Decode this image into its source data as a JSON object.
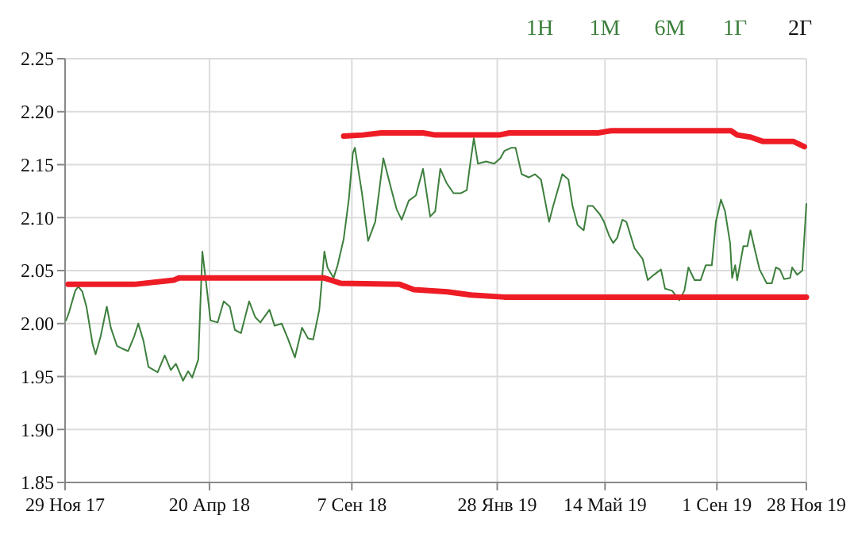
{
  "chart_data": {
    "type": "line",
    "annotations": [
      "1Н",
      "1М",
      "6М",
      "1Г",
      "2Г"
    ],
    "xlim": [
      "2017-11-29",
      "2019-11-28"
    ],
    "xticks": [
      {
        "value": "2017-11-29",
        "label": "29 Ноя 17"
      },
      {
        "value": "2018-04-20",
        "label": "20 Апр 18"
      },
      {
        "value": "2018-09-07",
        "label": "7 Сен 18"
      },
      {
        "value": "2019-01-28",
        "label": "28 Янв 19"
      },
      {
        "value": "2019-05-14",
        "label": "14 Май 19"
      },
      {
        "value": "2019-09-01",
        "label": "1 Сен 19"
      },
      {
        "value": "2019-11-28",
        "label": "28 Ноя 19"
      }
    ],
    "ylim": [
      1.85,
      2.25
    ],
    "yticks": [
      1.85,
      {
        "value": 1.9,
        "label": "1.90"
      },
      1.95,
      {
        "value": 2.0,
        "label": "2.00"
      },
      2.05,
      {
        "value": 2.1,
        "label": "2.10"
      },
      2.15,
      {
        "value": 2.2,
        "label": "2.20"
      },
      2.25
    ],
    "grid": true,
    "line_style": "solid",
    "series": [
      {
        "color": "#3d7f3d",
        "x": [
          "2017-11-30",
          "2017-12-03",
          "2017-12-09",
          "2017-12-12",
          "2017-12-16",
          "2017-12-20",
          "2017-12-26",
          "2017-12-29",
          "2018-01-03",
          "2018-01-09",
          "2018-01-13",
          "2018-01-19",
          "2018-01-25",
          "2018-01-30",
          "2018-02-05",
          "2018-02-09",
          "2018-02-14",
          "2018-02-19",
          "2018-02-28",
          "2018-03-07",
          "2018-03-13",
          "2018-03-18",
          "2018-03-25",
          "2018-03-30",
          "2018-04-03",
          "2018-04-09",
          "2018-04-13",
          "2018-04-17",
          "2018-04-21",
          "2018-04-28",
          "2018-05-04",
          "2018-05-10",
          "2018-05-15",
          "2018-05-21",
          "2018-05-29",
          "2018-06-04",
          "2018-06-09",
          "2018-06-18",
          "2018-06-23",
          "2018-06-30",
          "2018-07-06",
          "2018-07-13",
          "2018-07-20",
          "2018-07-26",
          "2018-07-31",
          "2018-08-06",
          "2018-08-11",
          "2018-08-14",
          "2018-08-20",
          "2018-08-24",
          "2018-08-30",
          "2018-09-04",
          "2018-09-08",
          "2018-09-10",
          "2018-09-17",
          "2018-09-23",
          "2018-09-30",
          "2018-10-08",
          "2018-10-16",
          "2018-10-21",
          "2018-10-26",
          "2018-11-02",
          "2018-11-09",
          "2018-11-16",
          "2018-11-23",
          "2018-11-28",
          "2018-12-03",
          "2018-12-09",
          "2018-12-16",
          "2018-12-23",
          "2018-12-29",
          "2019-01-01",
          "2019-01-05",
          "2019-01-09",
          "2019-01-17",
          "2019-01-25",
          "2019-01-31",
          "2019-02-04",
          "2019-02-11",
          "2019-02-15",
          "2019-02-21",
          "2019-02-28",
          "2019-03-06",
          "2019-03-12",
          "2019-03-20",
          "2019-03-24",
          "2019-04-02",
          "2019-04-08",
          "2019-04-12",
          "2019-04-17",
          "2019-04-23",
          "2019-04-27",
          "2019-05-02",
          "2019-05-09",
          "2019-05-13",
          "2019-05-18",
          "2019-05-22",
          "2019-05-26",
          "2019-05-31",
          "2019-06-04",
          "2019-06-12",
          "2019-06-20",
          "2019-06-25",
          "2019-07-01",
          "2019-07-08",
          "2019-07-12",
          "2019-07-19",
          "2019-07-26",
          "2019-07-31",
          "2019-08-04",
          "2019-08-10",
          "2019-08-16",
          "2019-08-21",
          "2019-08-27",
          "2019-08-31",
          "2019-09-05",
          "2019-09-09",
          "2019-09-14",
          "2019-09-16",
          "2019-09-19",
          "2019-09-21",
          "2019-09-27",
          "2019-10-01",
          "2019-10-04",
          "2019-10-08",
          "2019-10-13",
          "2019-10-20",
          "2019-10-25",
          "2019-10-29",
          "2019-11-02",
          "2019-11-06",
          "2019-11-12",
          "2019-11-14",
          "2019-11-19",
          "2019-11-24",
          "2019-11-28"
        ],
        "values": [
          2.003,
          2.011,
          2.031,
          2.035,
          2.03,
          2.016,
          1.981,
          1.971,
          1.988,
          2.016,
          1.996,
          1.979,
          1.976,
          1.974,
          1.988,
          2.0,
          1.984,
          1.959,
          1.954,
          1.97,
          1.956,
          1.962,
          1.946,
          1.955,
          1.949,
          1.966,
          2.068,
          2.036,
          2.003,
          2.001,
          2.021,
          2.016,
          1.994,
          1.991,
          2.021,
          2.006,
          2.001,
          2.013,
          1.998,
          2.0,
          1.986,
          1.968,
          1.996,
          1.986,
          1.985,
          2.013,
          2.068,
          2.053,
          2.043,
          2.055,
          2.08,
          2.117,
          2.161,
          2.166,
          2.123,
          2.078,
          2.096,
          2.156,
          2.126,
          2.108,
          2.098,
          2.116,
          2.121,
          2.146,
          2.101,
          2.106,
          2.146,
          2.133,
          2.123,
          2.123,
          2.126,
          2.148,
          2.175,
          2.151,
          2.153,
          2.151,
          2.156,
          2.163,
          2.166,
          2.166,
          2.141,
          2.138,
          2.141,
          2.136,
          2.096,
          2.111,
          2.141,
          2.136,
          2.111,
          2.093,
          2.088,
          2.111,
          2.111,
          2.103,
          2.096,
          2.083,
          2.076,
          2.081,
          2.098,
          2.096,
          2.071,
          2.061,
          2.041,
          2.046,
          2.051,
          2.033,
          2.031,
          2.022,
          2.031,
          2.053,
          2.041,
          2.041,
          2.055,
          2.055,
          2.096,
          2.117,
          2.106,
          2.076,
          2.043,
          2.055,
          2.041,
          2.073,
          2.073,
          2.088,
          2.071,
          2.051,
          2.038,
          2.038,
          2.053,
          2.051,
          2.042,
          2.043,
          2.053,
          2.046,
          2.05,
          2.113
        ]
      },
      {
        "color": "#ee1c25",
        "x": [
          "2018-08-30",
          "2018-09-18",
          "2018-10-06",
          "2018-11-16",
          "2018-11-28",
          "2019-01-30",
          "2019-02-09",
          "2019-05-07",
          "2019-05-20",
          "2019-09-15",
          "2019-09-21",
          "2019-10-04",
          "2019-10-16",
          "2019-11-15",
          "2019-11-26"
        ],
        "values": [
          2.177,
          2.178,
          2.18,
          2.18,
          2.178,
          2.178,
          2.18,
          2.18,
          2.182,
          2.182,
          2.178,
          2.176,
          2.172,
          2.172,
          2.167
        ]
      },
      {
        "color": "#ee1c25",
        "x": [
          "2017-12-02",
          "2018-02-05",
          "2018-03-16",
          "2018-03-21",
          "2018-08-11",
          "2018-08-27",
          "2018-10-24",
          "2018-11-07",
          "2018-12-10",
          "2019-01-02",
          "2019-02-04",
          "2019-11-28"
        ],
        "values": [
          2.037,
          2.037,
          2.041,
          2.043,
          2.043,
          2.038,
          2.037,
          2.032,
          2.03,
          2.027,
          2.025,
          2.025
        ]
      }
    ]
  }
}
